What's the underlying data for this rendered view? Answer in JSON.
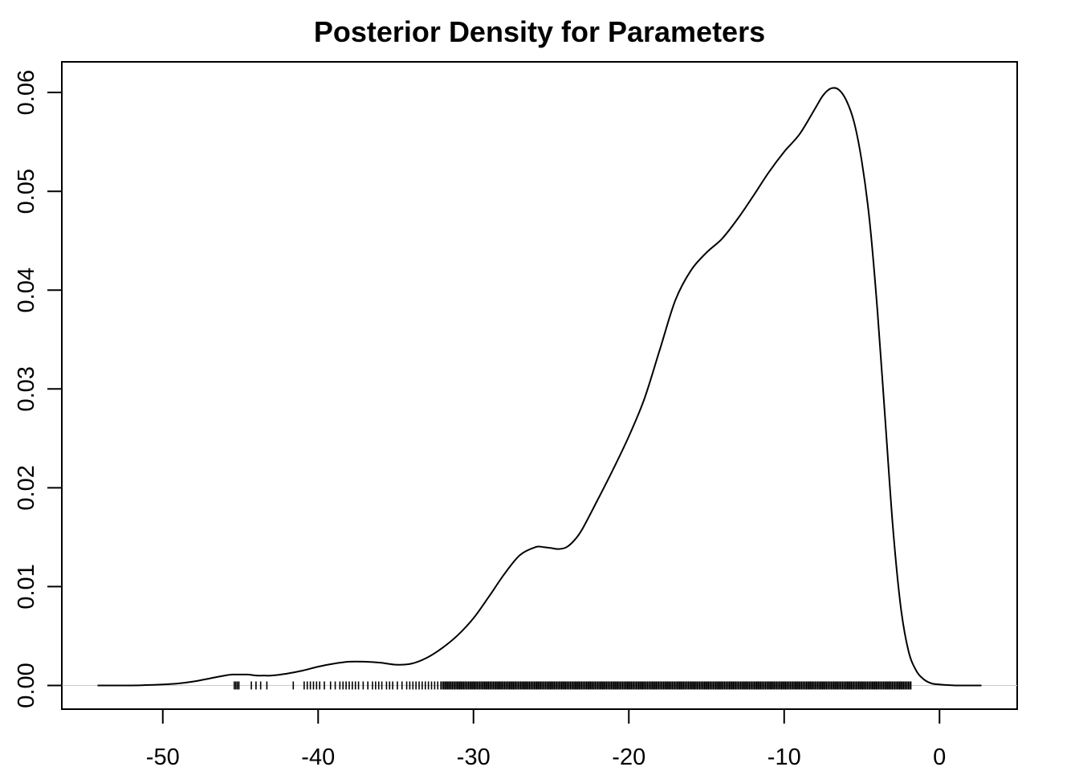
{
  "chart_data": {
    "type": "line",
    "title": "Posterior Density for Parameters",
    "xlabel": "",
    "ylabel": "",
    "xlim": [
      -56.5,
      5
    ],
    "ylim": [
      -0.0024,
      0.0631
    ],
    "x_ticks": [
      -50,
      -40,
      -30,
      -20,
      -10,
      0
    ],
    "y_ticks": [
      0.0,
      0.01,
      0.02,
      0.03,
      0.04,
      0.05,
      0.06
    ],
    "x_tick_labels": [
      "-50",
      "-40",
      "-30",
      "-20",
      "-10",
      "0"
    ],
    "y_tick_labels": [
      "0.00",
      "0.01",
      "0.02",
      "0.03",
      "0.04",
      "0.05",
      "0.06"
    ],
    "grid": false,
    "legend": "none",
    "colors": {
      "line": "#000000",
      "baseline": "#cccccc",
      "rug": "#000000"
    },
    "series": [
      {
        "x": [
          -54.2,
          -52,
          -50,
          -49,
          -48,
          -47,
          -46,
          -45.5,
          -45,
          -44.5,
          -44,
          -43.5,
          -43,
          -42,
          -41,
          -40,
          -39,
          -38,
          -37,
          -36,
          -35,
          -34,
          -33,
          -32,
          -31,
          -30,
          -29,
          -28,
          -27,
          -26,
          -25.5,
          -25,
          -24.5,
          -24,
          -23.5,
          -23,
          -22,
          -21,
          -20,
          -19,
          -18,
          -17,
          -16,
          -15,
          -14,
          -13,
          -12,
          -11,
          -10,
          -9,
          -8,
          -7.5,
          -7,
          -6.5,
          -6,
          -5.5,
          -5,
          -4.5,
          -4,
          -3.5,
          -3,
          -2.5,
          -2,
          -1.5,
          -1,
          -0.5,
          0,
          1,
          2,
          2.7
        ],
        "y": [
          0.0,
          0.0,
          0.0001,
          0.0002,
          0.0004,
          0.0007,
          0.001,
          0.0011,
          0.0011,
          0.0011,
          0.001,
          0.001,
          0.001,
          0.0012,
          0.0015,
          0.0019,
          0.0022,
          0.0024,
          0.0024,
          0.0023,
          0.0021,
          0.0022,
          0.0028,
          0.0038,
          0.0051,
          0.0068,
          0.009,
          0.0113,
          0.0132,
          0.014,
          0.014,
          0.0139,
          0.0138,
          0.014,
          0.0147,
          0.0158,
          0.0188,
          0.0219,
          0.0252,
          0.029,
          0.034,
          0.039,
          0.042,
          0.0438,
          0.0452,
          0.0472,
          0.0495,
          0.0519,
          0.054,
          0.0558,
          0.0584,
          0.0597,
          0.0604,
          0.0603,
          0.0592,
          0.057,
          0.053,
          0.047,
          0.038,
          0.027,
          0.016,
          0.008,
          0.0035,
          0.0015,
          0.0006,
          0.0002,
          0.0001,
          0.0,
          0.0,
          0.0
        ]
      }
    ],
    "rug": {
      "sparse": [
        -45.4,
        -45.3,
        -45.2,
        -45.1,
        -44.3,
        -44.0,
        -43.7,
        -43.3,
        -41.6,
        -40.9,
        -40.7,
        -40.5,
        -40.3,
        -40.1,
        -39.9,
        -39.6,
        -39.2,
        -38.9,
        -38.6,
        -38.4,
        -38.2,
        -38.0,
        -37.8,
        -37.6,
        -37.4,
        -37.1,
        -36.8,
        -36.5,
        -36.3,
        -36.1,
        -35.9,
        -35.6,
        -35.4,
        -35.2,
        -34.9,
        -34.6,
        -34.3,
        -34.1,
        -33.9,
        -33.7,
        -33.5,
        -33.3,
        -33.1,
        -32.9,
        -32.7,
        -32.5,
        -32.3,
        -32.1
      ],
      "dense_from": -32.0,
      "dense_to": -1.8
    }
  }
}
